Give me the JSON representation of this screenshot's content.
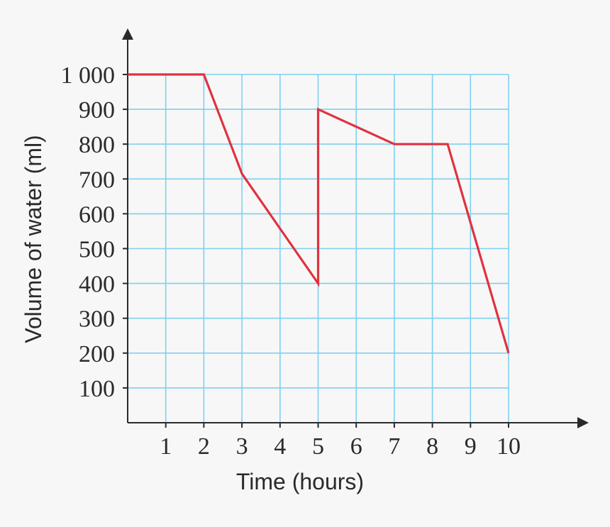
{
  "chart_data": {
    "type": "line",
    "title": "",
    "xlabel": "Time (hours)",
    "ylabel": "Volume of water (ml)",
    "xlim": [
      0,
      10
    ],
    "ylim": [
      0,
      1000
    ],
    "x_ticks": [
      "1",
      "2",
      "3",
      "4",
      "5",
      "6",
      "7",
      "8",
      "9",
      "10"
    ],
    "y_ticks": [
      "100",
      "200",
      "300",
      "400",
      "500",
      "600",
      "700",
      "800",
      "900",
      "1 000"
    ],
    "grid": true,
    "series": [
      {
        "x": [
          0,
          2,
          3,
          5,
          5,
          7,
          8.4,
          10
        ],
        "y": [
          1000,
          1000,
          715,
          400,
          900,
          800,
          800,
          200
        ]
      }
    ],
    "colors": {
      "line": "#e0323e",
      "grid": "#7fd0f0",
      "axis": "#2a2a2a",
      "background": "#f7f7f7"
    }
  }
}
